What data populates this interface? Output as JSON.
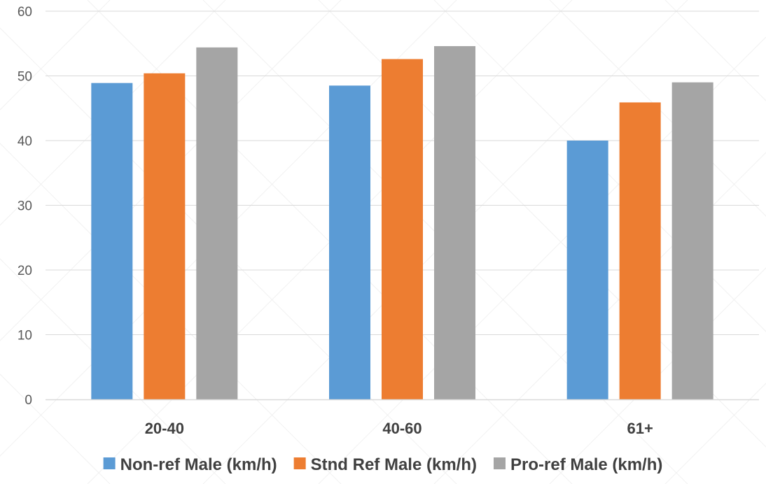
{
  "chart_data": {
    "type": "bar",
    "categories": [
      "20-40",
      "40-60",
      "61+"
    ],
    "series": [
      {
        "name": "Non-ref Male (km/h)",
        "values": [
          48.9,
          48.5,
          40.0
        ],
        "color": "#5B9BD5"
      },
      {
        "name": "Stnd Ref Male (km/h)",
        "values": [
          50.4,
          52.6,
          45.9
        ],
        "color": "#ED7D31"
      },
      {
        "name": "Pro-ref Male (km/h)",
        "values": [
          54.4,
          54.6,
          49.0
        ],
        "color": "#A5A5A5"
      }
    ],
    "ylim": [
      0,
      60
    ],
    "yticks": [
      0,
      10,
      20,
      30,
      40,
      50,
      60
    ],
    "grid": true,
    "legend_position": "bottom"
  }
}
